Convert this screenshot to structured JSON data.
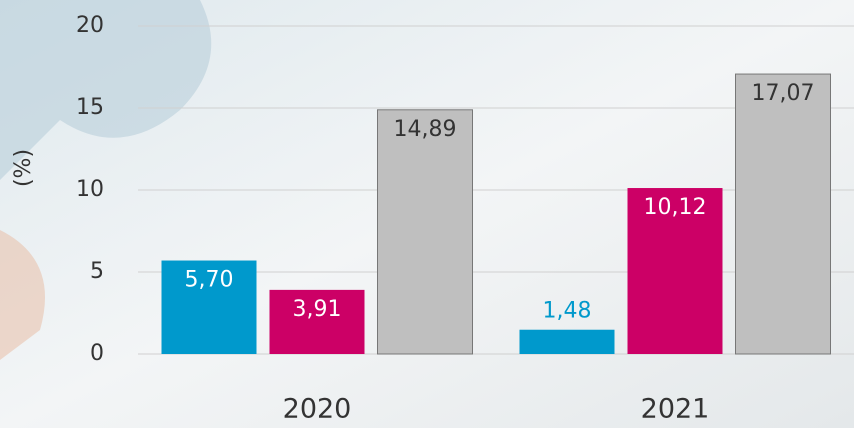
{
  "chart_data": {
    "type": "bar",
    "y_label": "(%)",
    "categories": [
      "2020",
      "2021"
    ],
    "series": [
      {
        "color": "#0099cc",
        "values": [
          5.7,
          1.48
        ],
        "value_labels": [
          "5,70",
          "1,48"
        ]
      },
      {
        "color": "#cc0066",
        "values": [
          3.91,
          10.12
        ],
        "value_labels": [
          "3,91",
          "10,12"
        ]
      },
      {
        "color": "#bfbfbf",
        "values": [
          14.89,
          17.07
        ],
        "value_labels": [
          "14,89",
          "17,07"
        ]
      }
    ],
    "ylim": [
      0,
      20
    ],
    "yticks": [
      0,
      5,
      10,
      15,
      20
    ],
    "grid": true
  }
}
